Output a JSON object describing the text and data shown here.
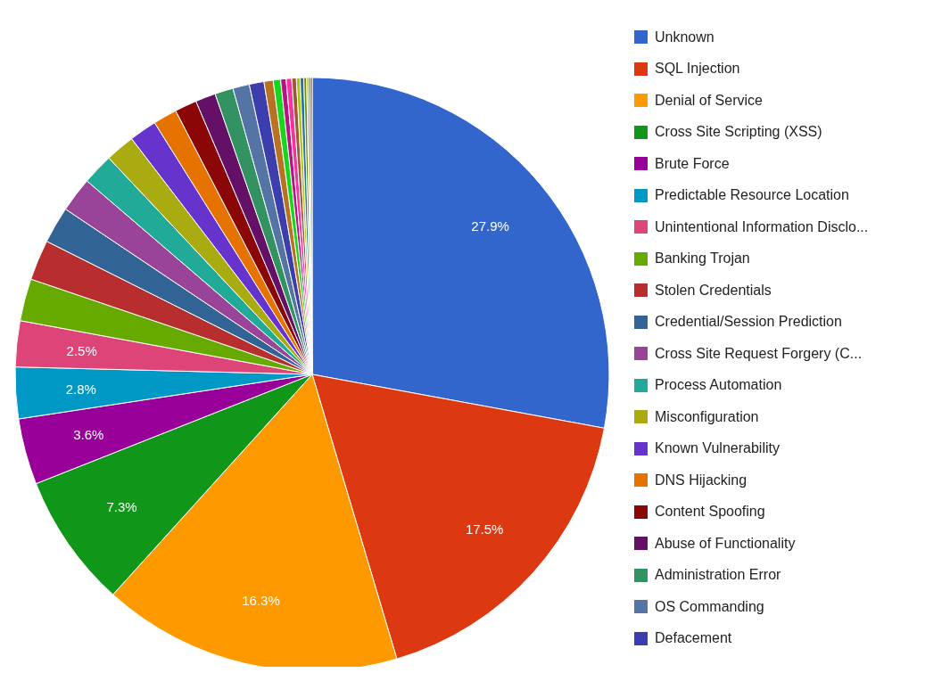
{
  "chart_data": {
    "type": "pie",
    "legend": "right",
    "categories": [
      "Unknown",
      "SQL Injection",
      "Denial of Service",
      "Cross Site Scripting (XSS)",
      "Brute Force",
      "Predictable Resource Location",
      "Unintentional Information Disclo...",
      "Banking Trojan",
      "Stolen Credentials",
      "Credential/Session Prediction",
      "Cross Site Request Forgery (C...",
      "Process Automation",
      "Misconfiguration",
      "Known Vulnerability",
      "DNS Hijacking",
      "Content Spoofing",
      "Abuse of Functionality",
      "Administration Error",
      "OS Commanding",
      "Defacement",
      null,
      null,
      null,
      null,
      null,
      null,
      null,
      null,
      null,
      null,
      null
    ],
    "values": [
      27.9,
      17.5,
      16.3,
      7.3,
      3.6,
      2.8,
      2.5,
      2.3,
      2.2,
      2.0,
      1.9,
      1.7,
      1.6,
      1.5,
      1.3,
      1.2,
      1.1,
      1.0,
      0.9,
      0.8,
      0.5,
      0.4,
      0.3,
      0.3,
      0.25,
      0.2,
      0.2,
      0.15,
      0.1,
      0.1,
      0.1
    ],
    "colors": [
      "#3366cc",
      "#dc3912",
      "#ff9900",
      "#109618",
      "#990099",
      "#0099c6",
      "#dd4477",
      "#66aa00",
      "#b82e2e",
      "#316395",
      "#994499",
      "#22aa99",
      "#aaaa11",
      "#6633cc",
      "#e67300",
      "#8b0707",
      "#651067",
      "#329262",
      "#5574a6",
      "#3b3eac",
      "#b77322",
      "#16d620",
      "#b91383",
      "#f4359e",
      "#9c5935",
      "#a9c413",
      "#2a778d",
      "#668d1c",
      "#bea413",
      "#0c5922",
      "#743411"
    ],
    "value_labels": [
      "27.9%",
      "17.5%",
      "16.3%",
      "7.3%",
      "3.6%",
      "2.8%",
      "2.5%",
      null,
      null,
      null,
      null,
      null,
      null,
      null,
      null,
      null,
      null,
      null,
      null,
      null,
      null,
      null,
      null,
      null,
      null,
      null,
      null,
      null,
      null,
      null,
      null
    ]
  }
}
